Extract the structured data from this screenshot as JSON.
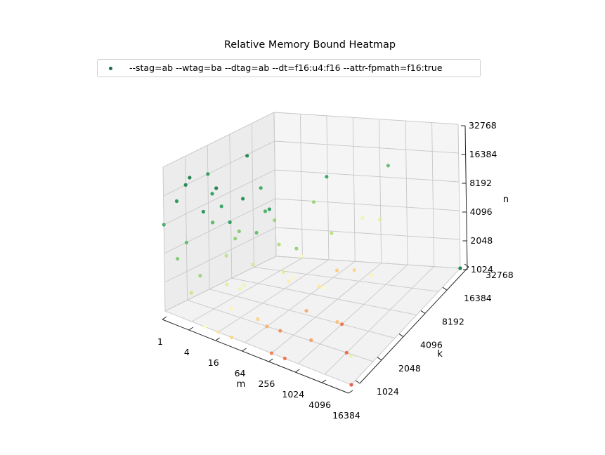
{
  "chart_data": {
    "type": "scatter3d",
    "title": "Relative Memory Bound Heatmap",
    "xlabel": "m",
    "ylabel": "k",
    "zlabel": "n",
    "scale": "log2",
    "x_ticks": [
      "1",
      "4",
      "16",
      "64",
      "256",
      "1024",
      "4096",
      "16384"
    ],
    "y_ticks": [
      "1024",
      "2048",
      "4096",
      "8192",
      "16384",
      "32768"
    ],
    "z_ticks": [
      "1024",
      "2048",
      "4096",
      "8192",
      "16384",
      "32768"
    ],
    "xlim": [
      1,
      16384
    ],
    "ylim": [
      1024,
      32768
    ],
    "zlim": [
      1024,
      32768
    ],
    "colormap": "RdYlGn",
    "colormap_colors": [
      "#d73027",
      "#f46d43",
      "#fdae61",
      "#fee08b",
      "#ffffbf",
      "#d9ef8b",
      "#a6d96a",
      "#66bd63",
      "#1a9850",
      "#006837"
    ],
    "legend": {
      "position": "top-center",
      "entries": [
        "--stag=ab --wtag=ba --dtag=ab --dt=f16:u4:f16 --attr-fpmath=f16:true"
      ],
      "marker_color": "#1a6b45"
    },
    "series": [
      {
        "name": "--stag=ab --wtag=ba --dtag=ab --dt=f16:u4:f16 --attr-fpmath=f16:true",
        "point_fields": [
          "m",
          "k",
          "n",
          "relative_memory_bound"
        ],
        "points": [
          [
            1,
            2048,
            16384,
            0.95
          ],
          [
            1,
            4096,
            16384,
            0.9
          ],
          [
            1,
            1024,
            8192,
            0.85
          ],
          [
            1,
            2048,
            4096,
            0.8
          ],
          [
            2,
            1024,
            16384,
            0.92
          ],
          [
            2,
            4096,
            8192,
            0.88
          ],
          [
            2,
            2048,
            2048,
            0.7
          ],
          [
            2,
            1024,
            4096,
            0.75
          ],
          [
            4,
            1024,
            32768,
            0.97
          ],
          [
            4,
            2048,
            16384,
            0.9
          ],
          [
            4,
            4096,
            4096,
            0.72
          ],
          [
            4,
            1024,
            2048,
            0.6
          ],
          [
            4,
            2048,
            8192,
            0.82
          ],
          [
            8,
            1024,
            16384,
            0.93
          ],
          [
            8,
            4096,
            32768,
            0.96
          ],
          [
            8,
            2048,
            2048,
            0.55
          ],
          [
            8,
            1024,
            1024,
            0.45
          ],
          [
            8,
            2048,
            4096,
            0.62
          ],
          [
            16,
            1024,
            32768,
            0.98
          ],
          [
            16,
            2048,
            8192,
            0.75
          ],
          [
            16,
            4096,
            16384,
            0.86
          ],
          [
            16,
            1024,
            1024,
            0.35
          ],
          [
            16,
            2048,
            2048,
            0.5
          ],
          [
            32,
            1024,
            16384,
            0.9
          ],
          [
            32,
            2048,
            4096,
            0.58
          ],
          [
            32,
            1024,
            2048,
            0.4
          ],
          [
            32,
            4096,
            8192,
            0.7
          ],
          [
            32,
            1024,
            1024,
            0.3
          ],
          [
            64,
            1024,
            32768,
            0.94
          ],
          [
            64,
            2048,
            16384,
            0.84
          ],
          [
            64,
            1024,
            4096,
            0.5
          ],
          [
            64,
            4096,
            2048,
            0.38
          ],
          [
            64,
            2048,
            1024,
            0.22
          ],
          [
            128,
            1024,
            16384,
            0.8
          ],
          [
            128,
            2048,
            8192,
            0.66
          ],
          [
            128,
            1024,
            2048,
            0.3
          ],
          [
            128,
            4096,
            4096,
            0.46
          ],
          [
            128,
            2048,
            1024,
            0.15
          ],
          [
            256,
            1024,
            32768,
            0.9
          ],
          [
            256,
            2048,
            4096,
            0.42
          ],
          [
            256,
            1024,
            1024,
            0.12
          ],
          [
            256,
            4096,
            16384,
            0.7
          ],
          [
            256,
            8192,
            2048,
            0.28
          ],
          [
            512,
            1024,
            8192,
            0.55
          ],
          [
            512,
            2048,
            2048,
            0.2
          ],
          [
            512,
            4096,
            32768,
            0.88
          ],
          [
            512,
            1024,
            1024,
            0.1
          ],
          [
            1024,
            1024,
            16384,
            0.72
          ],
          [
            1024,
            2048,
            4096,
            0.35
          ],
          [
            1024,
            4096,
            1024,
            0.1
          ],
          [
            1024,
            8192,
            8192,
            0.5
          ],
          [
            2048,
            1024,
            2048,
            0.18
          ],
          [
            2048,
            2048,
            16384,
            0.64
          ],
          [
            2048,
            4096,
            4096,
            0.3
          ],
          [
            4096,
            1024,
            8192,
            0.45
          ],
          [
            4096,
            2048,
            1024,
            0.08
          ],
          [
            4096,
            8192,
            32768,
            0.8
          ],
          [
            8192,
            1024,
            4096,
            0.25
          ],
          [
            8192,
            4096,
            16384,
            0.55
          ],
          [
            16384,
            1024,
            1024,
            0.05
          ],
          [
            16384,
            2048,
            8192,
            0.4
          ],
          [
            16384,
            32768,
            1024,
            0.98
          ],
          [
            16384,
            1024,
            2048,
            0.52
          ]
        ]
      }
    ]
  }
}
